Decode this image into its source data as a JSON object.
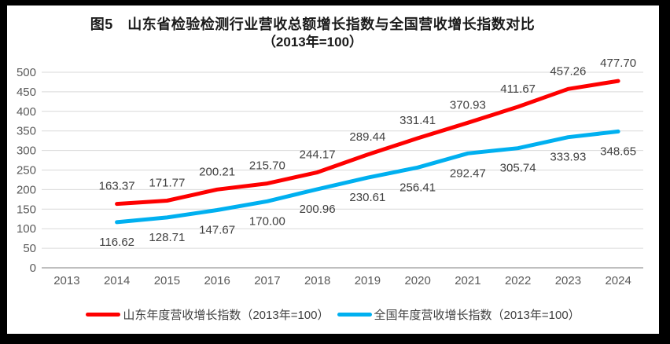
{
  "window": {
    "frame_color": "#000000",
    "canvas_color": "#ffffff"
  },
  "title": {
    "line1": "图5　山东省检验检测行业营收总额增长指数与全国营收增长指数对比",
    "line2": "（2013年=100）"
  },
  "chart_data": {
    "type": "line",
    "title": "图5 山东省检验检测行业营收总额增长指数与全国营收增长指数对比（2013年=100）",
    "categories": [
      "2013",
      "2014",
      "2015",
      "2016",
      "2017",
      "2018",
      "2019",
      "2020",
      "2021",
      "2022",
      "2023",
      "2024"
    ],
    "series": [
      {
        "name": "山东年度营收增长指数（2013年=100）",
        "color": "#FE0000",
        "label_position": "above",
        "values": [
          null,
          163.37,
          171.77,
          200.21,
          215.7,
          244.17,
          289.44,
          331.41,
          370.93,
          411.67,
          457.26,
          477.7
        ]
      },
      {
        "name": "全国年度营收增长指数（2013年=100）",
        "color": "#00B0F0",
        "label_position": "below",
        "values": [
          null,
          116.62,
          128.71,
          147.67,
          170.0,
          200.96,
          230.61,
          256.41,
          292.47,
          305.74,
          333.93,
          348.65
        ]
      }
    ],
    "ylim": [
      0,
      500
    ],
    "ytick_step": 50,
    "ytick_labels": [
      "0",
      "50",
      "100",
      "150",
      "200",
      "250",
      "300",
      "350",
      "400",
      "450",
      "500"
    ],
    "grid": true,
    "data_labels": true,
    "data_label_decimals": 2,
    "legend_position": "bottom"
  },
  "colors": {
    "gridline": "#D9D9D9",
    "axis_line": "#BFBFBF",
    "tick_label": "#595959",
    "data_label": "#404040"
  }
}
